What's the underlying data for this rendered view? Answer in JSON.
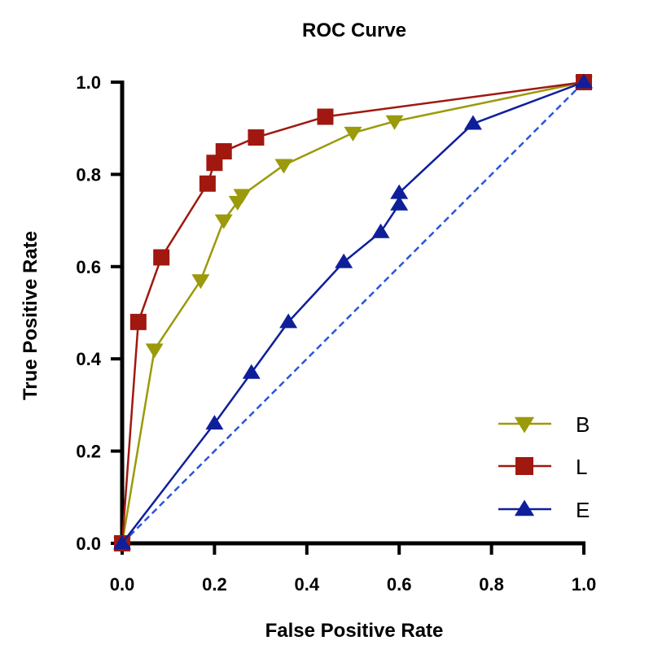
{
  "chart_data": {
    "type": "line",
    "title": "ROC Curve",
    "xlabel": "False Positive Rate",
    "ylabel": "True Positive Rate",
    "xlim": [
      0.0,
      1.0
    ],
    "ylim": [
      0.0,
      1.0
    ],
    "xticks": [
      "0.0",
      "0.2",
      "0.4",
      "0.6",
      "0.8",
      "1.0"
    ],
    "yticks": [
      "0.0",
      "0.2",
      "0.4",
      "0.6",
      "0.8",
      "1.0"
    ],
    "grid": false,
    "legend_position": "bottom-right",
    "series": [
      {
        "name": "B",
        "marker": "triangle-down",
        "color": "#9a9a0a",
        "x": [
          0.0,
          0.07,
          0.17,
          0.22,
          0.25,
          0.26,
          0.35,
          0.5,
          0.59,
          1.0
        ],
        "y": [
          0.0,
          0.42,
          0.57,
          0.7,
          0.74,
          0.755,
          0.82,
          0.89,
          0.915,
          1.0
        ]
      },
      {
        "name": "L",
        "marker": "square",
        "color": "#a01810",
        "x": [
          0.0,
          0.035,
          0.085,
          0.185,
          0.2,
          0.22,
          0.29,
          0.44,
          1.0
        ],
        "y": [
          0.0,
          0.48,
          0.62,
          0.78,
          0.825,
          0.85,
          0.88,
          0.925,
          1.0
        ]
      },
      {
        "name": "E",
        "marker": "triangle-up",
        "color": "#0f1f9a",
        "x": [
          0.0,
          0.2,
          0.28,
          0.36,
          0.48,
          0.56,
          0.6,
          0.6,
          0.76,
          1.0
        ],
        "y": [
          0.0,
          0.26,
          0.37,
          0.48,
          0.61,
          0.675,
          0.735,
          0.76,
          0.91,
          1.0
        ]
      }
    ],
    "reference_line": {
      "x": [
        0.0,
        1.0
      ],
      "y": [
        0.0,
        1.0
      ],
      "style": "dashed",
      "color": "#2a55e0"
    }
  }
}
